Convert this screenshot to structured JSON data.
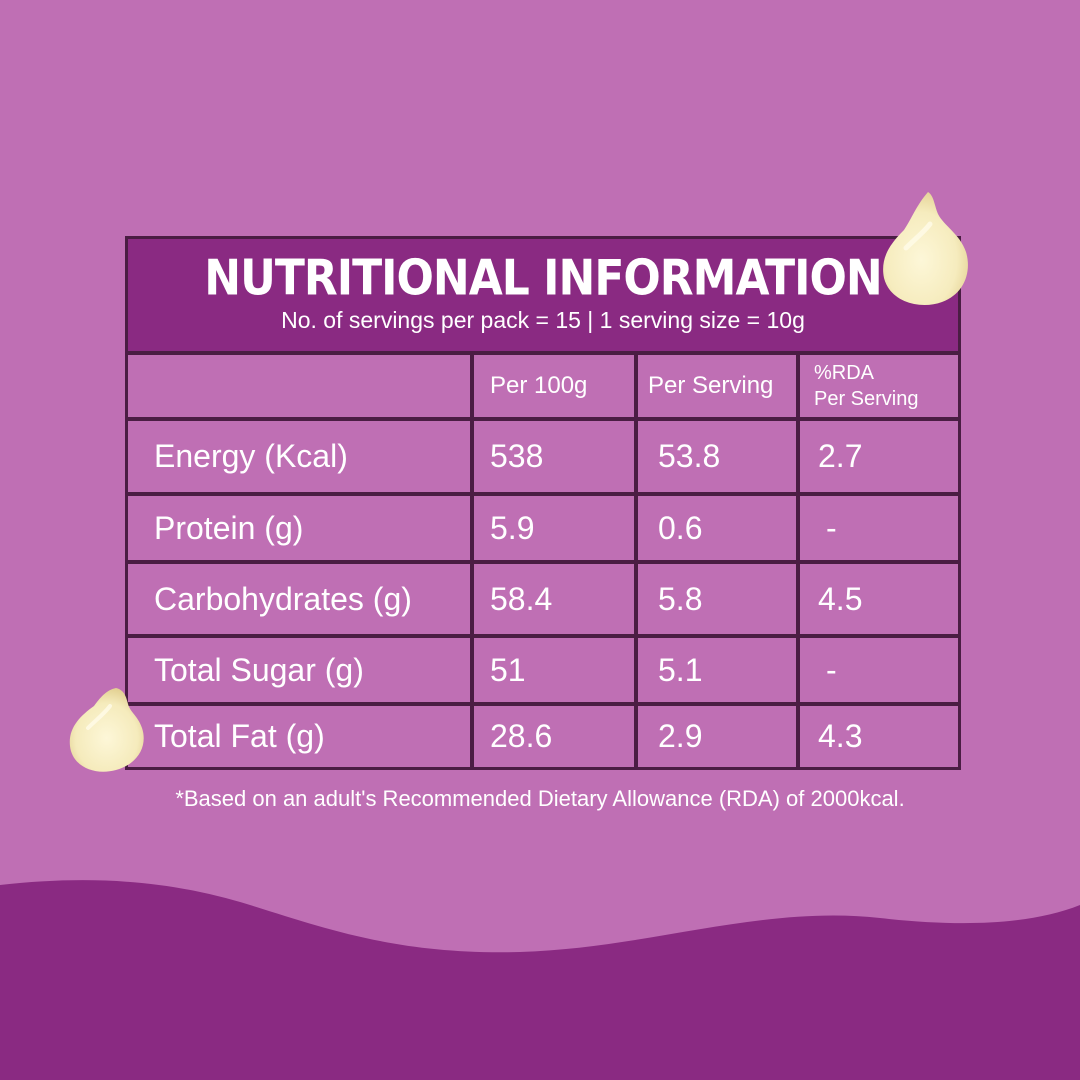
{
  "panel": {
    "title": "NUTRITIONAL INFORMATION",
    "subtitle": "No. of servings per pack = 15 | 1 serving size = 10g"
  },
  "table": {
    "headers": [
      "",
      "Per 100g",
      "Per Serving",
      "%RDA\nPer Serving"
    ],
    "header_rda_line1": "%RDA",
    "header_rda_line2": "Per Serving",
    "rows": [
      {
        "name": "Energy (Kcal)",
        "per100g": "538",
        "perServing": "53.8",
        "rda": "2.7"
      },
      {
        "name": "Protein (g)",
        "per100g": "5.9",
        "perServing": "0.6",
        "rda": "-"
      },
      {
        "name": "Carbohydrates (g)",
        "per100g": "58.4",
        "perServing": "5.8",
        "rda": "4.5"
      },
      {
        "name": "Total Sugar (g)",
        "per100g": "51",
        "perServing": "5.1",
        "rda": "-"
      },
      {
        "name": "Total Fat (g)",
        "per100g": "28.6",
        "perServing": "2.9",
        "rda": "4.3"
      }
    ]
  },
  "footnote": "*Based on an adult's Recommended Dietary Allowance (RDA) of 2000kcal.",
  "colors": {
    "background": "#bf6fb4",
    "header_bg": "#8a2a82",
    "border": "#4a1d43",
    "wave": "#8a2a82",
    "chip": "#f8f0c6"
  },
  "icons": [
    "white-chocolate-chip-icon"
  ]
}
